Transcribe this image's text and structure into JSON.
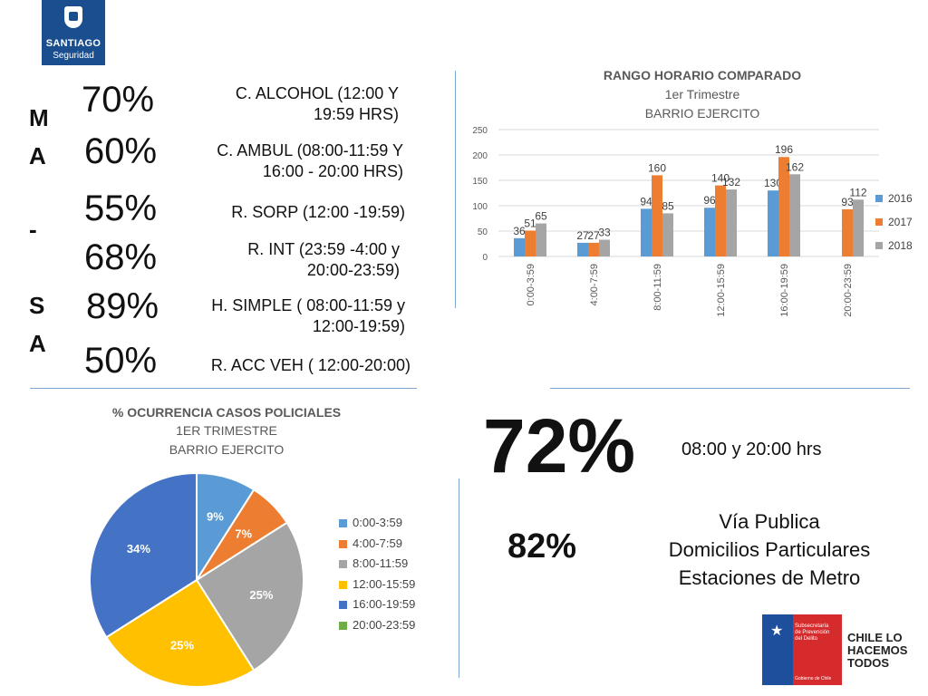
{
  "logo": {
    "name": "SANTIAGO",
    "sub": "Seguridad"
  },
  "side_letters": [
    "M",
    "A",
    "-",
    "S",
    "A"
  ],
  "percent_list": [
    {
      "value": "70%",
      "label_lines": [
        "C. ALCOHOL (12:00 Y",
        "19:59 HRS)"
      ]
    },
    {
      "value": "60%",
      "label_lines": [
        "C. AMBUL (08:00-11:59 Y",
        "16:00 - 20:00 HRS)"
      ]
    },
    {
      "value": "55%",
      "label_lines": [
        "R. SORP (12:00 -19:59)"
      ]
    },
    {
      "value": "68%",
      "label_lines": [
        "R. INT (23:59 -4:00 y",
        "20:00-23:59)"
      ]
    },
    {
      "value": "89%",
      "label_lines": [
        "H. SIMPLE ( 08:00-11:59 y",
        "12:00-19:59)"
      ]
    },
    {
      "value": "50%",
      "label_lines": [
        "R. ACC VEH ( 12:00-20:00)"
      ]
    }
  ],
  "colors": {
    "2016": "#5b9bd5",
    "2017": "#ed7d31",
    "2018": "#a5a5a5",
    "yellow": "#ffc000",
    "blue": "#4472c4",
    "green": "#70ad47",
    "rule": "#7fa6cf"
  },
  "chart_data": [
    {
      "type": "bar",
      "title": "RANGO HORARIO COMPARADO",
      "subtitle1": "1er Trimestre",
      "subtitle2": "BARRIO EJERCITO",
      "categories": [
        "0:00-3:59",
        "4:00-7:59",
        "8:00-11:59",
        "12:00-15:59",
        "16:00-19:59",
        "20:00-23:59"
      ],
      "series": [
        {
          "name": "2016",
          "values": [
            36,
            27,
            94,
            96,
            130,
            null
          ]
        },
        {
          "name": "2017",
          "values": [
            51,
            27,
            160,
            140,
            196,
            93
          ]
        },
        {
          "name": "2018",
          "values": [
            65,
            33,
            85,
            132,
            162,
            112
          ]
        }
      ],
      "yticks": [
        "0",
        "50",
        "100",
        "150",
        "200",
        "250"
      ],
      "ylim": [
        0,
        250
      ],
      "legend": "right"
    },
    {
      "type": "pie",
      "title": "% OCURRENCIA CASOS POLICIALES",
      "subtitle1": "1ER TRIMESTRE",
      "subtitle2": "BARRIO EJERCITO",
      "slices": [
        {
          "label": "0:00-3:59",
          "value": 9,
          "text": "9%"
        },
        {
          "label": "4:00-7:59",
          "value": 7,
          "text": "7%"
        },
        {
          "label": "8:00-11:59",
          "value": 25,
          "text": "25%"
        },
        {
          "label": "12:00-15:59",
          "value": 25,
          "text": "25%"
        },
        {
          "label": "16:00-19:59",
          "value": 34,
          "text": "34%"
        },
        {
          "label": "20:00-23:59",
          "value": 0,
          "text": ""
        }
      ],
      "legend": "right"
    }
  ],
  "summary": {
    "big_percent": "72%",
    "big_label": "08:00 y 20:00 hrs",
    "second_percent": "82%",
    "places": [
      "Vía Publica",
      "Domicilios Particulares",
      "Estaciones de Metro"
    ]
  },
  "gov_logo": {
    "lines": [
      "Subsecretaría",
      "de Prevención",
      "del Delito"
    ],
    "bottom": "Gobierno de Chile",
    "slogan": [
      "CHILE LO",
      "HACEMOS",
      "TODOS"
    ]
  }
}
